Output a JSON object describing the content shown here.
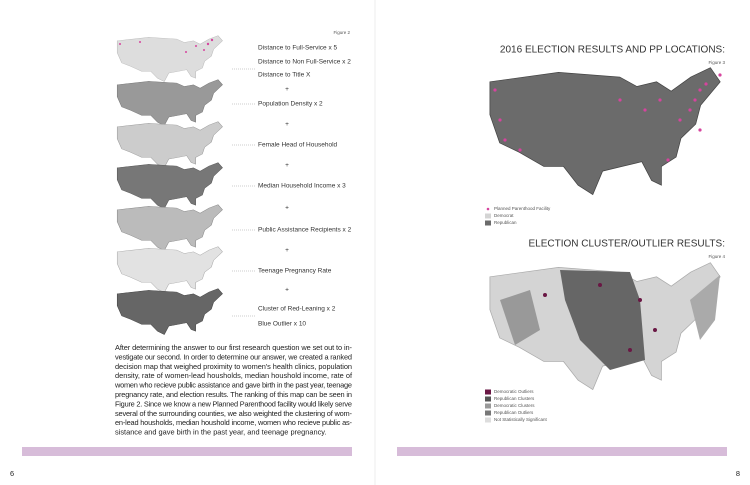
{
  "left_page": {
    "figure_label": "Figure 2",
    "layers": [
      {
        "lines": [
          "Distance to Full-Service   x 5",
          "Distance to Non Full-Service   x 2",
          "Distance to Title X"
        ]
      },
      {
        "lines": [
          "Population Density   x 2"
        ]
      },
      {
        "lines": [
          "Female Head of Household"
        ]
      },
      {
        "lines": [
          "Median Household Income   x 3"
        ]
      },
      {
        "lines": [
          "Public Assistance Recipients   x 2"
        ]
      },
      {
        "lines": [
          "Teenage Pregnancy Rate"
        ]
      },
      {
        "lines": [
          "Cluster of Red-Leaning   x 2",
          "Blue Outlier   x 10"
        ]
      }
    ],
    "separator": "+",
    "paragraph": [
      "After determining the answer to our first research question we set out to in-",
      "vestigate our second. In order to determine our answer, we created a ranked",
      "decision map that weighed proximity to women's health clinics, population",
      "density, rate of women-lead housholds, median houshold income, rate of",
      "women who recieve public assistance and gave birth in the past year, teenage",
      "pregnancy rate, and election results. The ranking of this map can be seen in",
      "Figure 2. Since we know a new Planned Parenthood facility would likely serve",
      "several of the surrounding counties, we also weighted the clustering of wom-",
      "en-lead housholds, median houshold income, women who recieve public as-",
      "sistance and gave birth in the past year, and teenage pregnancy."
    ],
    "page_number": "6"
  },
  "right_page": {
    "figure3": {
      "title": "2016 ELECTION RESULTS AND PP LOCATIONS:",
      "label": "Figure 3",
      "legend": [
        "Planned Parenthood Facility",
        "Democrat",
        "Republican"
      ]
    },
    "figure4": {
      "title": "ELECTION CLUSTER/OUTLIER RESULTS:",
      "label": "Figure 4",
      "legend": [
        "Democratic Outliers",
        "Republican Clusters",
        "Democratic Clusters",
        "Republican Outliers",
        "Not Statistically Significant"
      ]
    },
    "page_number": "8"
  }
}
